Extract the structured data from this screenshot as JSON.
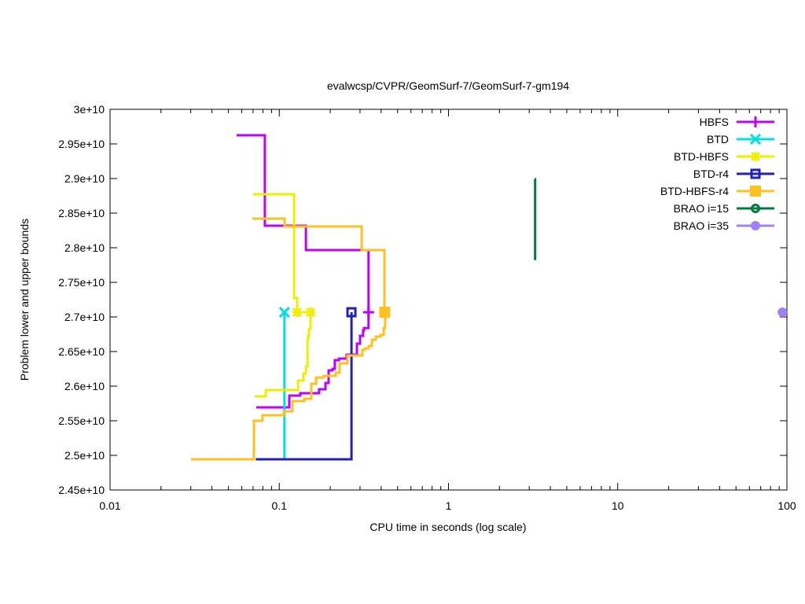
{
  "chart_data": {
    "type": "line",
    "title": "evalwcsp/CVPR/GeomSurf-7/GeomSurf-7-gm194",
    "xlabel": "CPU time in seconds (log scale)",
    "ylabel": "Problem lower and upper bounds",
    "xscale": "log",
    "xlim": [
      0.01,
      100
    ],
    "ylim": [
      24500000000.0,
      30000000000.0
    ],
    "xticks": [
      {
        "v": 0.01,
        "label": "0.01"
      },
      {
        "v": 0.1,
        "label": "0.1"
      },
      {
        "v": 1,
        "label": "1"
      },
      {
        "v": 10,
        "label": "10"
      },
      {
        "v": 100,
        "label": "100"
      }
    ],
    "yticks": [
      {
        "v": 24500000000.0,
        "label": "2.45e+10"
      },
      {
        "v": 25000000000.0,
        "label": "2.5e+10"
      },
      {
        "v": 25500000000.0,
        "label": "2.55e+10"
      },
      {
        "v": 26000000000.0,
        "label": "2.6e+10"
      },
      {
        "v": 26500000000.0,
        "label": "2.65e+10"
      },
      {
        "v": 27000000000.0,
        "label": "2.7e+10"
      },
      {
        "v": 27500000000.0,
        "label": "2.75e+10"
      },
      {
        "v": 28000000000.0,
        "label": "2.8e+10"
      },
      {
        "v": 28500000000.0,
        "label": "2.85e+10"
      },
      {
        "v": 29000000000.0,
        "label": "2.9e+10"
      },
      {
        "v": 29500000000.0,
        "label": "2.95e+10"
      },
      {
        "v": 30000000000.0,
        "label": "3e+10"
      }
    ],
    "grid": false,
    "legend_position": "top-right",
    "y_unit": 10000000000.0,
    "series": [
      {
        "name": "HBFS",
        "color": "#c000ff",
        "marker": "plus",
        "marker_at": [
          0.337,
          2.7068
        ],
        "steps": [
          [
            [
              0.056,
              2.9625
            ],
            [
              0.0822,
              2.8318
            ],
            [
              0.1436,
              2.7966
            ],
            [
              0.337,
              2.7068
            ]
          ],
          [
            [
              0.0731,
              2.5693
            ],
            [
              0.1146,
              2.5864
            ],
            [
              0.133,
              2.5898
            ],
            [
              0.172,
              2.5955
            ],
            [
              0.1875,
              2.6045
            ],
            [
              0.1957,
              2.6227
            ],
            [
              0.2065,
              2.625
            ],
            [
              0.213,
              2.6375
            ],
            [
              0.225,
              2.6398
            ],
            [
              0.25,
              2.6455
            ],
            [
              0.2877,
              2.6614
            ],
            [
              0.3,
              2.6727
            ],
            [
              0.313,
              2.6807
            ],
            [
              0.3167,
              2.684
            ],
            [
              0.337,
              2.6898
            ],
            [
              0.337,
              2.7068
            ]
          ]
        ]
      },
      {
        "name": "BTD",
        "color": "#00e0e0",
        "marker": "cross",
        "marker_at": [
          0.1073,
          2.7068
        ],
        "steps": [
          [
            [
              0.1073,
              2.4943
            ],
            [
              0.1073,
              2.7068
            ]
          ]
        ]
      },
      {
        "name": "BTD-HBFS",
        "color": "#eeee00",
        "marker": "star",
        "marker_at": [
          0.1276,
          2.7068
        ],
        "marker_at2": [
          0.153,
          2.7068
        ],
        "steps": [
          [
            [
              0.07,
              2.8773
            ],
            [
              0.1224,
              2.7273
            ],
            [
              0.1276,
              2.7068
            ],
            [
              0.153,
              2.7068
            ]
          ],
          [
            [
              0.0716,
              2.5852
            ],
            [
              0.0832,
              2.5943
            ],
            [
              0.129,
              2.608
            ],
            [
              0.139,
              2.6182
            ],
            [
              0.1436,
              2.6284
            ],
            [
              0.1467,
              2.667
            ],
            [
              0.148,
              2.6727
            ],
            [
              0.1497,
              2.683
            ],
            [
              0.153,
              2.6955
            ],
            [
              0.153,
              2.7068
            ]
          ]
        ]
      },
      {
        "name": "BTD-r4",
        "color": "#2020c0",
        "marker": "open-square",
        "marker_at": [
          0.267,
          2.7068
        ],
        "steps": [
          [
            [
              0.0727,
              2.4943
            ],
            [
              0.267,
              2.7068
            ]
          ]
        ]
      },
      {
        "name": "BTD-HBFS-r4",
        "color": "#ffc020",
        "marker": "filled-square",
        "marker_at": [
          0.42,
          2.7068
        ],
        "steps": [
          [
            [
              0.0693,
              2.842
            ],
            [
              0.1075,
              2.8307
            ],
            [
              0.307,
              2.7966
            ],
            [
              0.418,
              2.7068
            ]
          ],
          [
            [
              0.0301,
              2.4943
            ],
            [
              0.0708,
              2.55
            ],
            [
              0.0796,
              2.558
            ],
            [
              0.1064,
              2.5636
            ],
            [
              0.1196,
              2.5784
            ],
            [
              0.1405,
              2.5818
            ],
            [
              0.1546,
              2.6034
            ],
            [
              0.165,
              2.6125
            ],
            [
              0.1836,
              2.6148
            ],
            [
              0.2155,
              2.6193
            ],
            [
              0.2274,
              2.633
            ],
            [
              0.2529,
              2.6443
            ],
            [
              0.3097,
              2.6523
            ],
            [
              0.3199,
              2.6545
            ],
            [
              0.3375,
              2.658
            ],
            [
              0.3524,
              2.667
            ],
            [
              0.3718,
              2.6716
            ],
            [
              0.3963,
              2.674
            ],
            [
              0.414,
              2.684
            ],
            [
              0.4225,
              2.6943
            ],
            [
              0.4225,
              2.7068
            ]
          ]
        ]
      },
      {
        "name": "BRAO i=15",
        "color": "#007a3d",
        "marker": "open-circle",
        "marker_at": null,
        "steps": [
          [
            [
              3.227,
              2.899
            ],
            [
              3.25,
              2.7966
            ],
            [
              3.25,
              2.782
            ]
          ]
        ]
      },
      {
        "name": "BRAO i=35",
        "color": "#a080ff",
        "marker": "filled-circle",
        "marker_at": [
          94,
          2.7068
        ],
        "steps": []
      }
    ]
  }
}
